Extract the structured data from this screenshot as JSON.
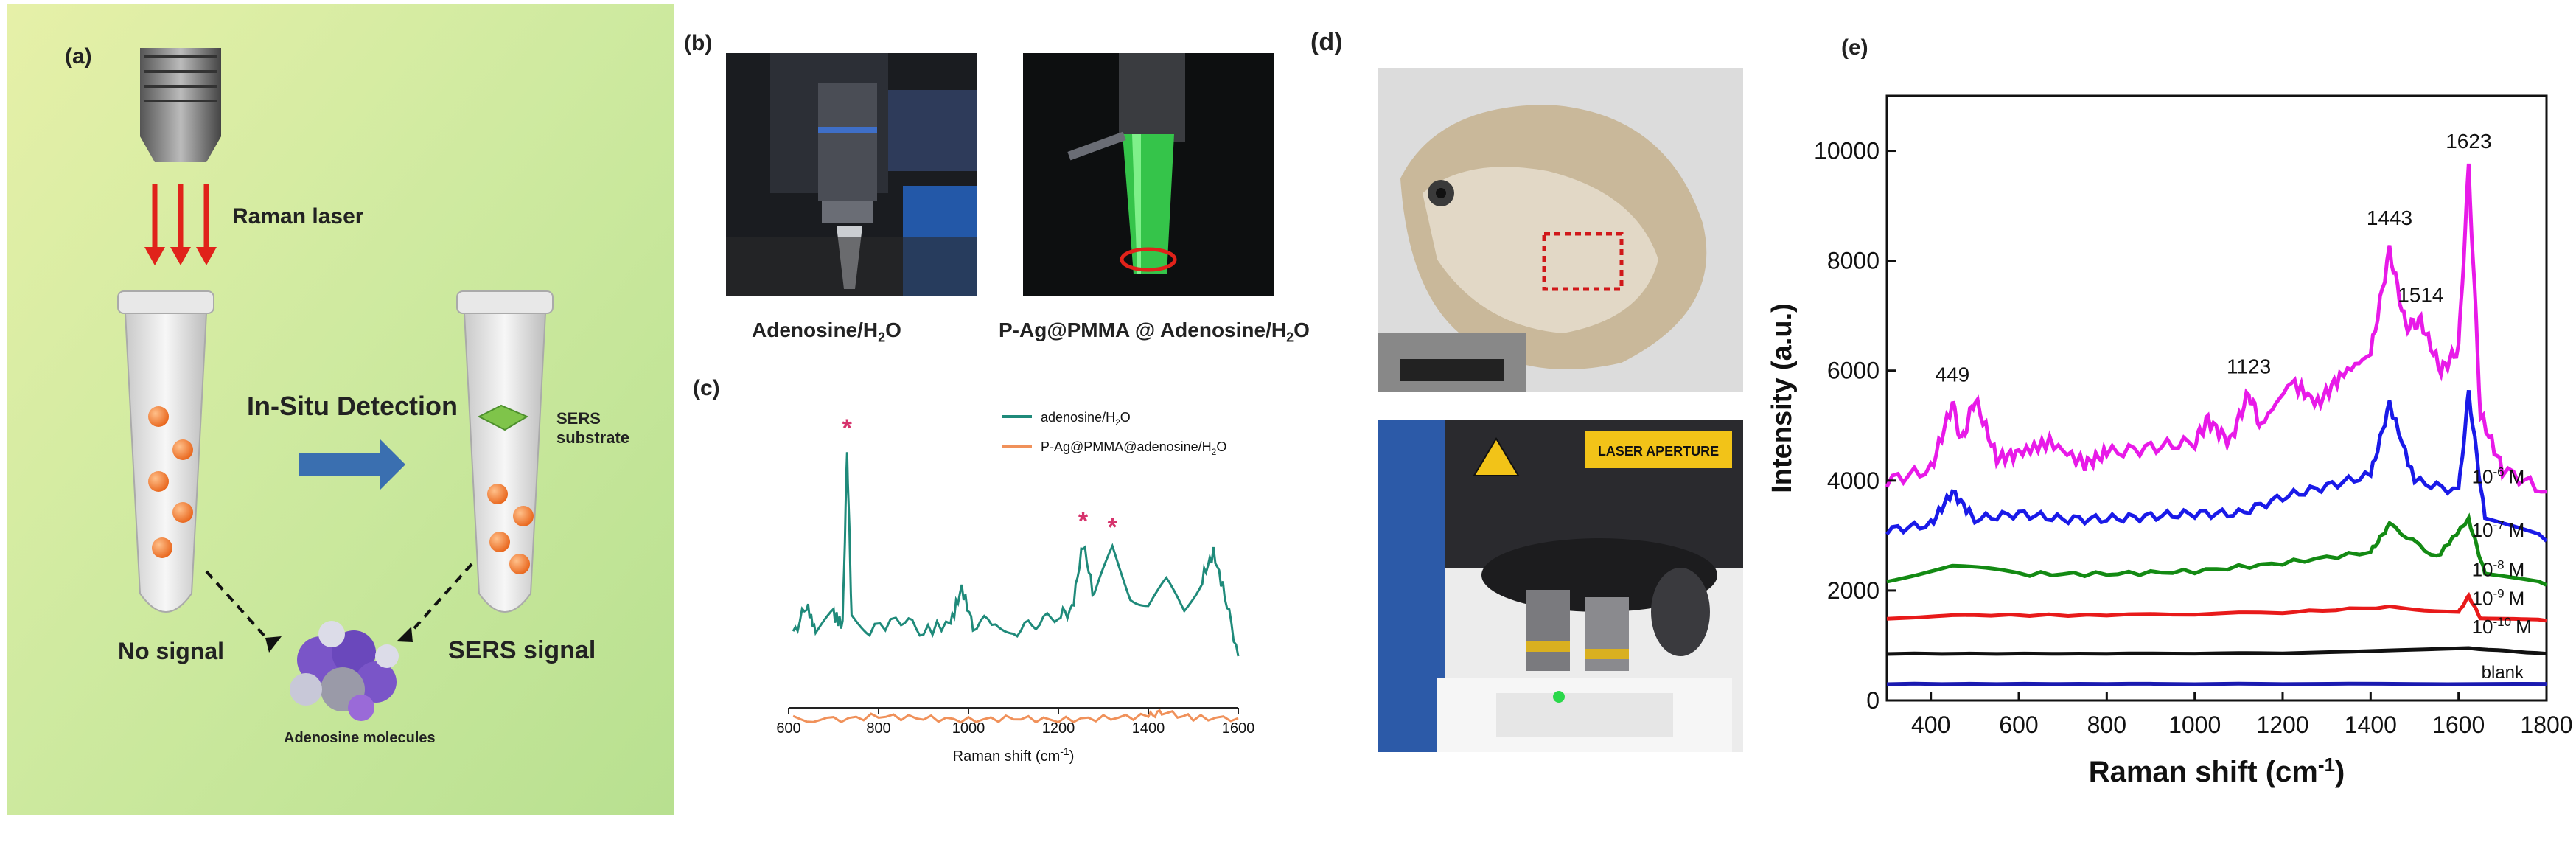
{
  "panels": {
    "a": {
      "label": "(a)",
      "raman_laser": "Raman laser",
      "in_situ": "In-Situ Detection",
      "sers_substrate": "SERS substrate",
      "no_signal": "No signal",
      "sers_signal": "SERS signal",
      "molecule": "Adenosine molecules",
      "colors": {
        "laser": "#e0221a",
        "dots": "#f07a2a",
        "arrow": "#3a6fb0"
      }
    },
    "b": {
      "label": "(b)",
      "caption_left_main": "Adenosine/H",
      "caption_left_sub": "2",
      "caption_left_end": "O",
      "caption_right_main": "P-Ag@PMMA @ Adenosine/H",
      "caption_right_sub": "2",
      "caption_right_end": "O"
    },
    "c": {
      "label": "(c)",
      "legend_1": "adenosine/H",
      "legend_1_sub": "2",
      "legend_1_end": "O",
      "legend_2": "P-Ag@PMMA@adenosine/H",
      "legend_2_sub": "2",
      "legend_2_end": "O",
      "star": "*",
      "xlabel_main": "Raman shift (cm",
      "xlabel_sup": "-1",
      "xlabel_end": ")",
      "ticks": [
        "600",
        "800",
        "1000",
        "1200",
        "1400",
        "1600"
      ],
      "colors": {
        "adenosine": "#1f8a7a",
        "sers": "#f0915a",
        "star": "#d6336c"
      }
    },
    "d": {
      "label": "(d)",
      "laser_sign": "LASER APERTURE"
    },
    "e": {
      "label": "(e)",
      "ylabel": "Intensity  (a.u.)",
      "xlabel_main": "Raman shift (cm",
      "xlabel_sup": "-1",
      "xlabel_end": ")",
      "xticks": [
        "400",
        "600",
        "800",
        "1000",
        "1200",
        "1400",
        "1600",
        "1800"
      ],
      "yticks": [
        "0",
        "2000",
        "4000",
        "6000",
        "8000",
        "10000"
      ],
      "peaks": [
        "449",
        "1123",
        "1443",
        "1514",
        "1623"
      ],
      "conc_labels": [
        "10",
        "10",
        "10",
        "10",
        "10"
      ],
      "conc_exps": [
        "-6",
        "-7",
        "-8",
        "-9",
        "-10"
      ],
      "conc_unit": "M",
      "blank": "blank"
    }
  },
  "chart_data": [
    {
      "type": "line",
      "title": "",
      "xlabel": "Raman shift (cm-1)",
      "ylabel": "",
      "xlim": [
        600,
        1600
      ],
      "series": [
        {
          "name": "adenosine/H2O",
          "color": "#1f8a7a",
          "x": [
            610,
            640,
            660,
            700,
            720,
            730,
            740,
            780,
            850,
            900,
            960,
            985,
            1010,
            1060,
            1100,
            1150,
            1200,
            1230,
            1255,
            1280,
            1320,
            1360,
            1400,
            1440,
            1480,
            1520,
            1545,
            1570,
            1600
          ],
          "y": [
            0.1,
            0.25,
            0.12,
            0.2,
            0.15,
            1.0,
            0.2,
            0.13,
            0.18,
            0.12,
            0.16,
            0.33,
            0.15,
            0.18,
            0.12,
            0.16,
            0.2,
            0.22,
            0.55,
            0.28,
            0.52,
            0.3,
            0.25,
            0.35,
            0.22,
            0.38,
            0.5,
            0.3,
            0.0
          ]
        },
        {
          "name": "P-Ag@PMMA@adenosine/H2O",
          "color": "#f0915a",
          "x": [
            610,
            700,
            800,
            900,
            1000,
            1100,
            1200,
            1300,
            1400,
            1430,
            1500,
            1600
          ],
          "y": [
            -0.3,
            -0.31,
            -0.29,
            -0.3,
            -0.31,
            -0.3,
            -0.31,
            -0.3,
            -0.29,
            -0.27,
            -0.3,
            -0.3
          ]
        }
      ],
      "annotations": [
        "*",
        "*",
        "*"
      ]
    },
    {
      "type": "line",
      "title": "",
      "xlabel": "Raman shift (cm-1)",
      "ylabel": "Intensity  (a.u.)",
      "xlim": [
        300,
        1800
      ],
      "ylim": [
        0,
        11000
      ],
      "series": [
        {
          "name": "10-6 M",
          "color": "#e81ae8",
          "x": [
            300,
            400,
            449,
            470,
            500,
            550,
            600,
            670,
            750,
            800,
            900,
            1000,
            1030,
            1080,
            1123,
            1150,
            1220,
            1280,
            1330,
            1400,
            1443,
            1480,
            1514,
            1560,
            1600,
            1623,
            1650,
            1700,
            1800
          ],
          "y": [
            4000,
            4200,
            5400,
            4700,
            5500,
            4400,
            4500,
            4700,
            4300,
            4500,
            4600,
            4700,
            5100,
            4700,
            5600,
            5000,
            5800,
            5400,
            5900,
            6300,
            8200,
            6800,
            6900,
            6000,
            6400,
            9700,
            5200,
            4200,
            3800
          ]
        },
        {
          "name": "10-7 M",
          "color": "#1a1ae8",
          "x": [
            300,
            400,
            449,
            500,
            600,
            700,
            800,
            900,
            1000,
            1100,
            1200,
            1300,
            1400,
            1443,
            1500,
            1600,
            1623,
            1660,
            1800
          ],
          "y": [
            3100,
            3200,
            3800,
            3300,
            3400,
            3300,
            3300,
            3350,
            3400,
            3400,
            3700,
            3900,
            4100,
            5400,
            4000,
            3800,
            5600,
            3300,
            2900
          ]
        },
        {
          "name": "10-8 M",
          "color": "#138a13",
          "x": [
            300,
            449,
            600,
            800,
            1000,
            1200,
            1400,
            1443,
            1550,
            1623,
            1660,
            1800
          ],
          "y": [
            2200,
            2450,
            2300,
            2300,
            2350,
            2500,
            2700,
            3200,
            2600,
            3300,
            2300,
            2100
          ]
        },
        {
          "name": "10-9 M",
          "color": "#e81a1a",
          "x": [
            300,
            449,
            800,
            1200,
            1443,
            1600,
            1623,
            1650,
            1800
          ],
          "y": [
            1500,
            1550,
            1550,
            1600,
            1700,
            1600,
            1900,
            1500,
            1450
          ]
        },
        {
          "name": "10-10 M",
          "color": "#111111",
          "x": [
            300,
            800,
            1200,
            1623,
            1800
          ],
          "y": [
            850,
            850,
            860,
            950,
            850
          ]
        },
        {
          "name": "blank",
          "color": "#1a1ab0",
          "x": [
            300,
            800,
            1200,
            1800
          ],
          "y": [
            300,
            300,
            300,
            300
          ]
        }
      ]
    }
  ]
}
